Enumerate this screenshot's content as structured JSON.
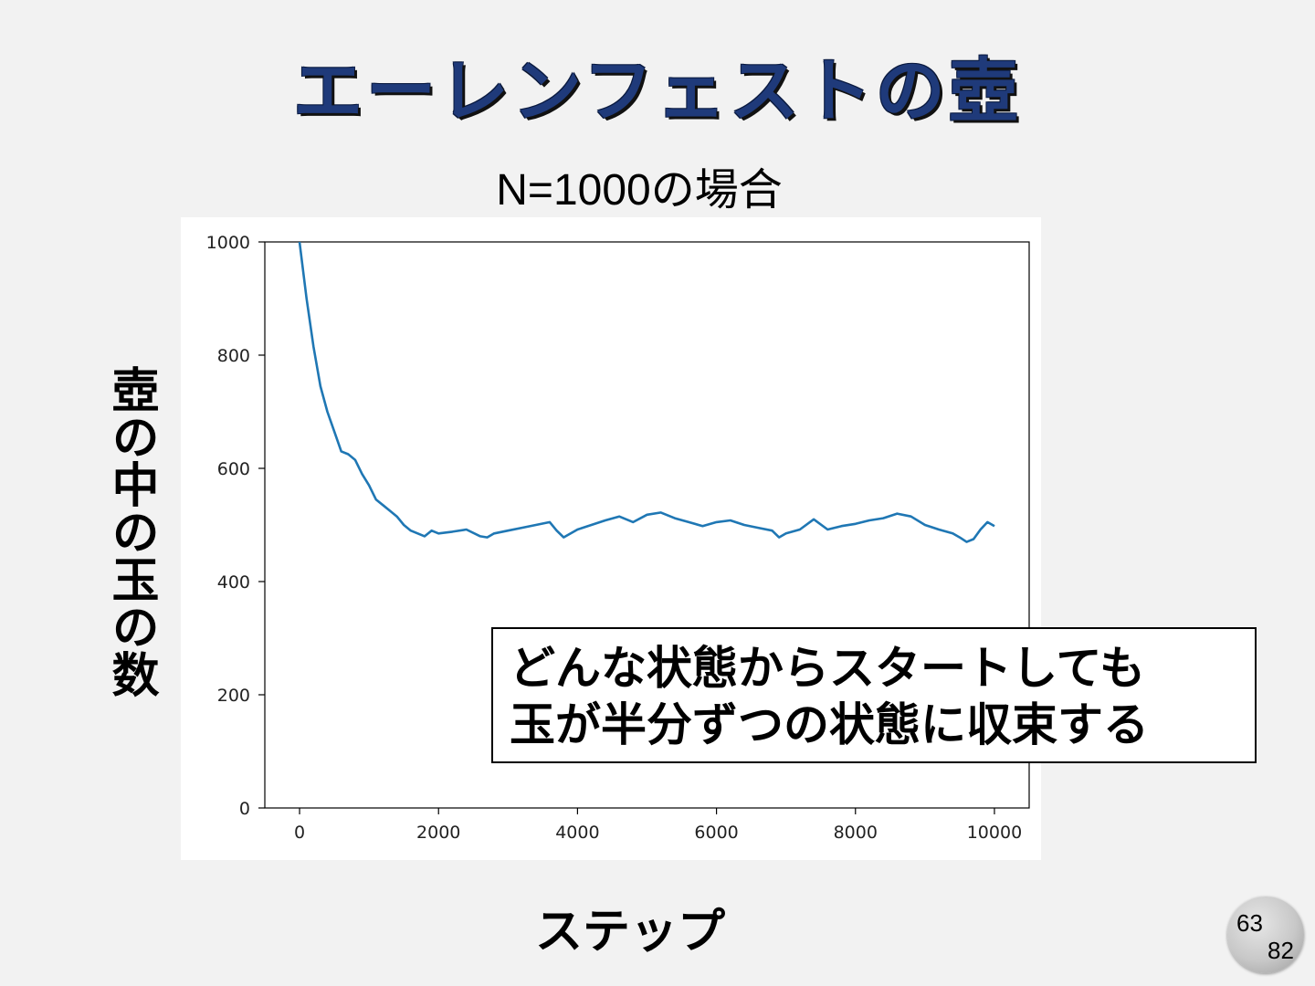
{
  "slide": {
    "title": "エーレンフェストの壺",
    "page_current": "63",
    "page_total": "82"
  },
  "callout": {
    "lines": [
      "どんな状態からスタートしても",
      "玉が半分ずつの状態に収束する"
    ]
  },
  "colors": {
    "title": "#1f3a7a",
    "line": "#1f77b4",
    "background": "#f2f2f2"
  },
  "chart_data": {
    "type": "line",
    "title": "N=1000の場合",
    "xlabel": "ステップ",
    "ylabel": "壺の中の玉の数",
    "xlim": [
      -500,
      10500
    ],
    "ylim": [
      0,
      1000
    ],
    "xticks": [
      0,
      2000,
      4000,
      6000,
      8000,
      10000
    ],
    "yticks": [
      0,
      200,
      400,
      600,
      800,
      1000
    ],
    "grid": false,
    "series": [
      {
        "color": "#1f77b4",
        "x": [
          0,
          100,
          200,
          300,
          400,
          500,
          600,
          700,
          800,
          900,
          1000,
          1100,
          1200,
          1300,
          1400,
          1500,
          1600,
          1700,
          1800,
          1900,
          2000,
          2200,
          2400,
          2600,
          2700,
          2800,
          3000,
          3200,
          3400,
          3600,
          3700,
          3800,
          4000,
          4200,
          4400,
          4600,
          4800,
          5000,
          5200,
          5400,
          5600,
          5800,
          6000,
          6200,
          6400,
          6600,
          6800,
          6900,
          7000,
          7200,
          7400,
          7600,
          7800,
          8000,
          8200,
          8400,
          8600,
          8800,
          9000,
          9200,
          9400,
          9500,
          9600,
          9700,
          9800,
          9900,
          10000
        ],
        "y": [
          1000,
          900,
          815,
          745,
          700,
          665,
          630,
          625,
          615,
          590,
          570,
          545,
          535,
          525,
          515,
          500,
          490,
          485,
          480,
          490,
          485,
          488,
          492,
          480,
          478,
          485,
          490,
          495,
          500,
          505,
          490,
          478,
          492,
          500,
          508,
          515,
          505,
          518,
          522,
          512,
          505,
          498,
          505,
          508,
          500,
          495,
          490,
          478,
          485,
          492,
          510,
          492,
          498,
          502,
          508,
          512,
          520,
          515,
          500,
          492,
          485,
          478,
          470,
          475,
          492,
          505,
          498
        ]
      }
    ]
  }
}
